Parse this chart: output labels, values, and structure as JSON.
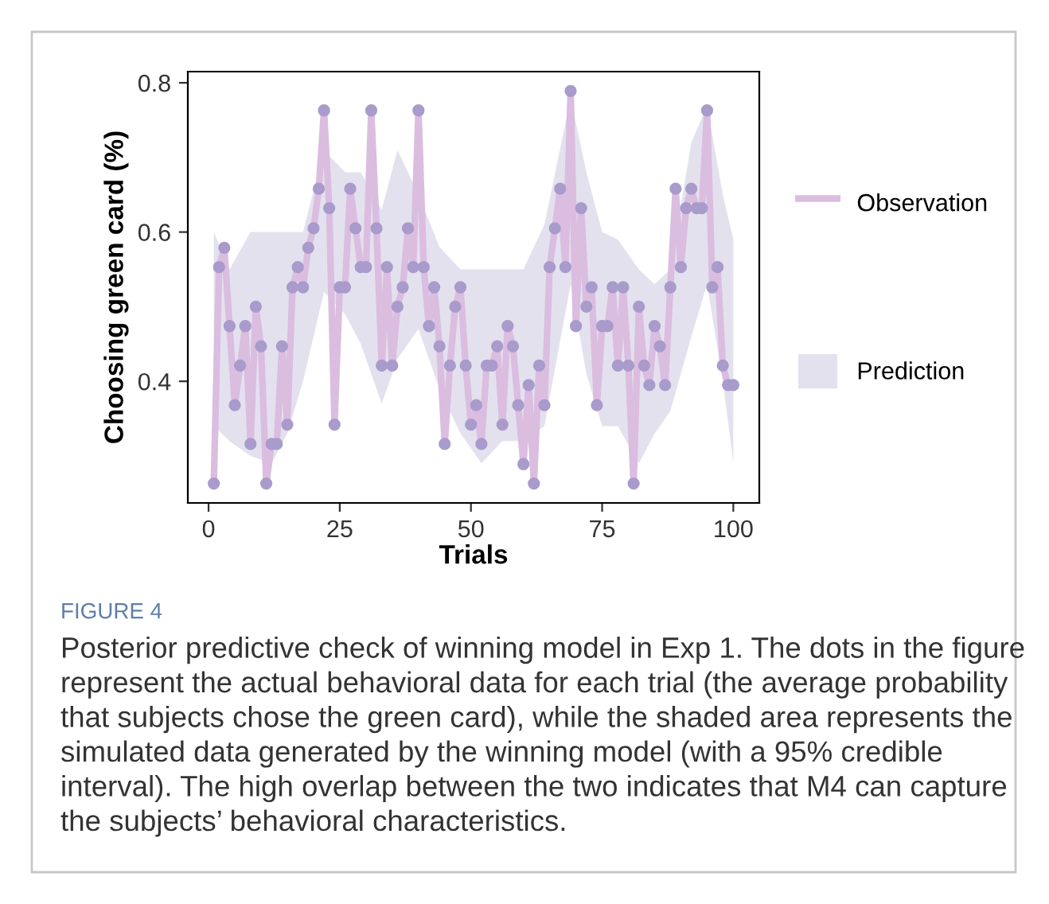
{
  "chart_data": {
    "type": "line",
    "xlabel": "Trials",
    "ylabel": "Choosing green card (%)",
    "xlim": [
      -3.95,
      104.95
    ],
    "xticks": [
      0,
      25,
      50,
      75,
      100
    ],
    "ylim": [
      0.237,
      0.815
    ],
    "yticks": [
      {
        "value": 0.4,
        "label": "0.4"
      },
      {
        "value": 0.6,
        "label": "0.6"
      },
      {
        "value": 0.8,
        "label": "0.8"
      }
    ],
    "grid": false,
    "legend": "right",
    "line_style": "solid",
    "series": [
      {
        "name": "Prediction",
        "type": "area",
        "color": "#e4e1ef",
        "x": [
          1,
          4,
          8,
          12,
          15,
          18,
          22,
          26,
          29,
          33,
          36,
          40,
          44,
          48,
          52,
          56,
          60,
          64,
          69,
          72,
          75,
          78,
          82,
          85,
          88,
          92,
          95,
          98,
          100
        ],
        "lower": [
          0.34,
          0.32,
          0.3,
          0.29,
          0.33,
          0.4,
          0.52,
          0.49,
          0.45,
          0.37,
          0.43,
          0.47,
          0.39,
          0.33,
          0.29,
          0.32,
          0.32,
          0.34,
          0.53,
          0.41,
          0.34,
          0.34,
          0.29,
          0.33,
          0.36,
          0.46,
          0.53,
          0.4,
          0.29
        ],
        "values": [
          null,
          null,
          null,
          null,
          null,
          null,
          null,
          null,
          null,
          null,
          null,
          null,
          null,
          null,
          null,
          null,
          null,
          null,
          null,
          null,
          null,
          null,
          null,
          null,
          null,
          null,
          null,
          null,
          null
        ],
        "upper": [
          0.6,
          0.55,
          0.6,
          0.6,
          0.6,
          0.6,
          0.71,
          0.68,
          0.68,
          0.63,
          0.71,
          0.65,
          0.58,
          0.55,
          0.55,
          0.55,
          0.55,
          0.61,
          0.78,
          0.68,
          0.6,
          0.59,
          0.55,
          0.53,
          0.55,
          0.72,
          0.77,
          0.65,
          0.59
        ]
      },
      {
        "name": "Observation",
        "color": "#dbbde0",
        "x": [
          1,
          2,
          3,
          4,
          5,
          6,
          7,
          8,
          9,
          10,
          11,
          12,
          13,
          14,
          15,
          16,
          17,
          18,
          19,
          20,
          21,
          22,
          23,
          24,
          25,
          26,
          27,
          28,
          29,
          30,
          31,
          32,
          33,
          34,
          35,
          36,
          37,
          38,
          39,
          40,
          41,
          42,
          43,
          44,
          45,
          46,
          47,
          48,
          49,
          50,
          51,
          52,
          53,
          54,
          55,
          56,
          57,
          58,
          59,
          60,
          61,
          62,
          63,
          64,
          65,
          66,
          67,
          68,
          69,
          70,
          71,
          72,
          73,
          74,
          75,
          76,
          77,
          78,
          79,
          80,
          81,
          82,
          83,
          84,
          85,
          86,
          87,
          88,
          89,
          90,
          91,
          92,
          93,
          94,
          95,
          96,
          97,
          98,
          99,
          100
        ],
        "values": [
          0.263,
          0.553,
          0.579,
          0.474,
          0.368,
          0.421,
          0.474,
          0.316,
          0.5,
          0.447,
          0.263,
          0.316,
          0.316,
          0.447,
          0.342,
          0.526,
          0.553,
          0.526,
          0.579,
          0.605,
          0.658,
          0.763,
          0.632,
          0.342,
          0.526,
          0.526,
          0.658,
          0.605,
          0.553,
          0.553,
          0.763,
          0.605,
          0.421,
          0.553,
          0.421,
          0.5,
          0.526,
          0.605,
          0.553,
          0.763,
          0.553,
          0.474,
          0.526,
          0.447,
          0.316,
          0.421,
          0.5,
          0.526,
          0.421,
          0.342,
          0.368,
          0.316,
          0.421,
          0.421,
          0.447,
          0.342,
          0.474,
          0.447,
          0.368,
          0.289,
          0.395,
          0.263,
          0.421,
          0.368,
          0.553,
          0.605,
          0.658,
          0.553,
          0.789,
          0.474,
          0.632,
          0.5,
          0.526,
          0.368,
          0.474,
          0.474,
          0.526,
          0.421,
          0.526,
          0.421,
          0.263,
          0.5,
          0.421,
          0.395,
          0.474,
          0.447,
          0.395,
          0.526,
          0.658,
          0.553,
          0.632,
          0.658,
          0.632,
          0.632,
          0.763,
          0.526,
          0.553,
          0.421,
          0.395,
          0.395
        ]
      },
      {
        "type": "scatter",
        "color": "#a99bcb",
        "marker": "circle",
        "x": [
          1,
          2,
          3,
          4,
          5,
          6,
          7,
          8,
          9,
          10,
          11,
          12,
          13,
          14,
          15,
          16,
          17,
          18,
          19,
          20,
          21,
          22,
          23,
          24,
          25,
          26,
          27,
          28,
          29,
          30,
          31,
          32,
          33,
          34,
          35,
          36,
          37,
          38,
          39,
          40,
          41,
          42,
          43,
          44,
          45,
          46,
          47,
          48,
          49,
          50,
          51,
          52,
          53,
          54,
          55,
          56,
          57,
          58,
          59,
          60,
          61,
          62,
          63,
          64,
          65,
          66,
          67,
          68,
          69,
          70,
          71,
          72,
          73,
          74,
          75,
          76,
          77,
          78,
          79,
          80,
          81,
          82,
          83,
          84,
          85,
          86,
          87,
          88,
          89,
          90,
          91,
          92,
          93,
          94,
          95,
          96,
          97,
          98,
          99,
          100
        ],
        "values": [
          0.263,
          0.553,
          0.579,
          0.474,
          0.368,
          0.421,
          0.474,
          0.316,
          0.5,
          0.447,
          0.263,
          0.316,
          0.316,
          0.447,
          0.342,
          0.526,
          0.553,
          0.526,
          0.579,
          0.605,
          0.658,
          0.763,
          0.632,
          0.342,
          0.526,
          0.526,
          0.658,
          0.605,
          0.553,
          0.553,
          0.763,
          0.605,
          0.421,
          0.553,
          0.421,
          0.5,
          0.526,
          0.605,
          0.553,
          0.763,
          0.553,
          0.474,
          0.526,
          0.447,
          0.316,
          0.421,
          0.5,
          0.526,
          0.421,
          0.342,
          0.368,
          0.316,
          0.421,
          0.421,
          0.447,
          0.342,
          0.474,
          0.447,
          0.368,
          0.289,
          0.395,
          0.263,
          0.421,
          0.368,
          0.553,
          0.605,
          0.658,
          0.553,
          0.789,
          0.474,
          0.632,
          0.5,
          0.526,
          0.368,
          0.474,
          0.474,
          0.526,
          0.421,
          0.526,
          0.421,
          0.263,
          0.5,
          0.421,
          0.395,
          0.474,
          0.447,
          0.395,
          0.526,
          0.658,
          0.553,
          0.632,
          0.658,
          0.632,
          0.632,
          0.763,
          0.526,
          0.553,
          0.421,
          0.395,
          0.395
        ]
      }
    ],
    "annotations": [
      "FIGURE 4",
      "Posterior predictive check of winning model in Exp 1. The dots in the figure represent the actual behavioral data for each trial (the average probability that subjects chose the green card), while the shaded area represents the simulated data generated by the winning model (with a 95% credible interval). The high overlap between the two indicates that M4 can capture the subjects’ behavioral characteristics."
    ]
  }
}
